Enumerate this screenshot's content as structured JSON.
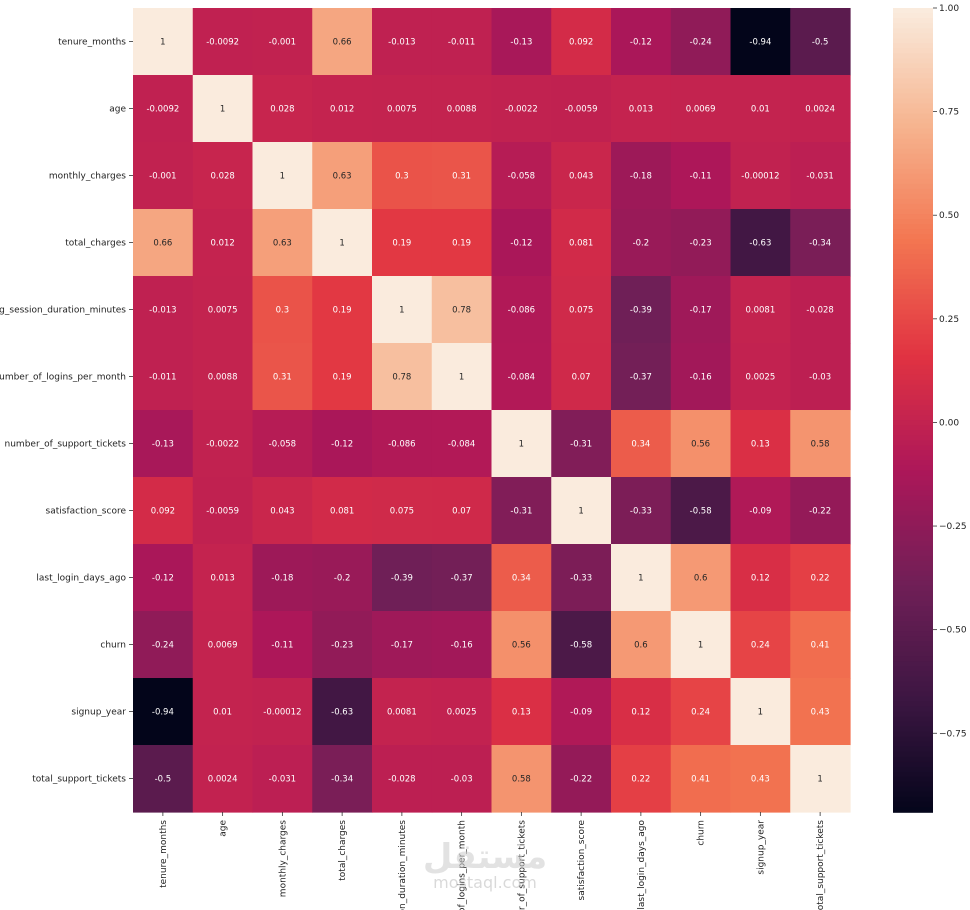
{
  "chart_data": {
    "type": "heatmap",
    "title": "",
    "xlabel": "",
    "ylabel": "",
    "annot": true,
    "row_labels": [
      "tenure_months",
      "age",
      "monthly_charges",
      "total_charges",
      "avg_session_duration_minutes",
      "number_of_logins_per_month",
      "number_of_support_tickets",
      "satisfaction_score",
      "last_login_days_ago",
      "churn",
      "signup_year",
      "total_support_tickets"
    ],
    "col_labels": [
      "tenure_months",
      "age",
      "monthly_charges",
      "total_charges",
      "sion_duration_minutes",
      "r_of_logins_per_month",
      "ber_of_support_tickets",
      "satisfaction_score",
      "last_login_days_ago",
      "churn",
      "signup_year",
      "total_support_tickets"
    ],
    "labels": [
      [
        "1",
        "-0.0092",
        "-0.001",
        "0.66",
        "-0.013",
        "-0.011",
        "-0.13",
        "0.092",
        "-0.12",
        "-0.24",
        "-0.94",
        "-0.5"
      ],
      [
        "-0.0092",
        "1",
        "0.028",
        "0.012",
        "0.0075",
        "0.0088",
        "-0.0022",
        "-0.0059",
        "0.013",
        "0.0069",
        "0.01",
        "0.0024"
      ],
      [
        "-0.001",
        "0.028",
        "1",
        "0.63",
        "0.3",
        "0.31",
        "-0.058",
        "0.043",
        "-0.18",
        "-0.11",
        "-0.00012",
        "-0.031"
      ],
      [
        "0.66",
        "0.012",
        "0.63",
        "1",
        "0.19",
        "0.19",
        "-0.12",
        "0.081",
        "-0.2",
        "-0.23",
        "-0.63",
        "-0.34"
      ],
      [
        "-0.013",
        "0.0075",
        "0.3",
        "0.19",
        "1",
        "0.78",
        "-0.086",
        "0.075",
        "-0.39",
        "-0.17",
        "0.0081",
        "-0.028"
      ],
      [
        "-0.011",
        "0.0088",
        "0.31",
        "0.19",
        "0.78",
        "1",
        "-0.084",
        "0.07",
        "-0.37",
        "-0.16",
        "0.0025",
        "-0.03"
      ],
      [
        "-0.13",
        "-0.0022",
        "-0.058",
        "-0.12",
        "-0.086",
        "-0.084",
        "1",
        "-0.31",
        "0.34",
        "0.56",
        "0.13",
        "0.58"
      ],
      [
        "0.092",
        "-0.0059",
        "0.043",
        "0.081",
        "0.075",
        "0.07",
        "-0.31",
        "1",
        "-0.33",
        "-0.58",
        "-0.09",
        "-0.22"
      ],
      [
        "-0.12",
        "0.013",
        "-0.18",
        "-0.2",
        "-0.39",
        "-0.37",
        "0.34",
        "-0.33",
        "1",
        "0.6",
        "0.12",
        "0.22"
      ],
      [
        "-0.24",
        "0.0069",
        "-0.11",
        "-0.23",
        "-0.17",
        "-0.16",
        "0.56",
        "-0.58",
        "0.6",
        "1",
        "0.24",
        "0.41"
      ],
      [
        "-0.94",
        "0.01",
        "-0.00012",
        "-0.63",
        "0.0081",
        "0.0025",
        "0.13",
        "-0.09",
        "0.12",
        "0.24",
        "1",
        "0.43"
      ],
      [
        "-0.5",
        "0.0024",
        "-0.031",
        "-0.34",
        "-0.028",
        "-0.03",
        "0.58",
        "-0.22",
        "0.22",
        "0.41",
        "0.43",
        "1"
      ]
    ],
    "colorbar": {
      "range": [
        -0.94,
        1.0
      ],
      "ticks": [
        1.0,
        0.75,
        0.5,
        0.25,
        0.0,
        -0.25,
        -0.5,
        -0.75
      ],
      "tick_labels": [
        "1.00",
        "0.75",
        "0.50",
        "0.25",
        "0.00",
        "−0.25",
        "−0.50",
        "−0.75"
      ],
      "colormap": "rocket",
      "colors": [
        "#03051a",
        "#3c1642",
        "#701f57",
        "#ad1759",
        "#e13342",
        "#f37651",
        "#f6b48f",
        "#faebdd"
      ]
    }
  },
  "watermark": {
    "mark": "مستقل",
    "text": "mostaql.com"
  }
}
